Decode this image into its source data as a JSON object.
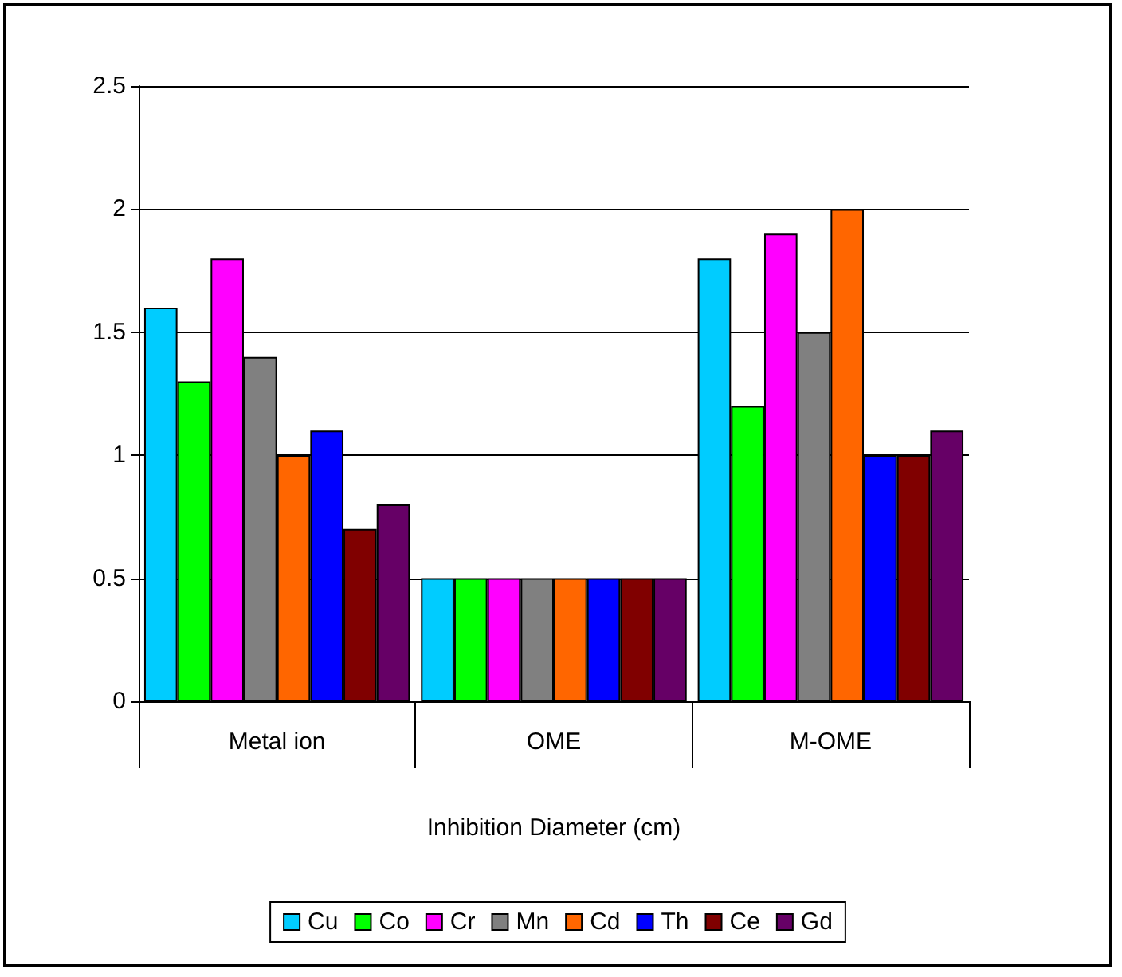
{
  "chart_data": {
    "type": "bar",
    "xlabel": "Inhibition Diameter (cm)",
    "categories": [
      "Metal ion",
      "OME",
      "M-OME"
    ],
    "series": [
      {
        "name": "Cu",
        "color": "#00ccff",
        "values": [
          1.6,
          0.5,
          1.8
        ]
      },
      {
        "name": "Co",
        "color": "#00ff00",
        "values": [
          1.3,
          0.5,
          1.2
        ]
      },
      {
        "name": "Cr",
        "color": "#ff00ff",
        "values": [
          1.8,
          0.5,
          1.9
        ]
      },
      {
        "name": "Mn",
        "color": "#808080",
        "values": [
          1.4,
          0.5,
          1.5
        ]
      },
      {
        "name": "Cd",
        "color": "#ff6600",
        "values": [
          1.0,
          0.5,
          2.0
        ]
      },
      {
        "name": "Th",
        "color": "#0000ff",
        "values": [
          1.1,
          0.5,
          1.0
        ]
      },
      {
        "name": "Ce",
        "color": "#800000",
        "values": [
          0.7,
          0.5,
          1.0
        ]
      },
      {
        "name": "Gd",
        "color": "#660066",
        "values": [
          0.8,
          0.5,
          1.1
        ]
      }
    ],
    "ylim": [
      0,
      2.5
    ],
    "yticks": [
      0,
      0.5,
      1,
      1.5,
      2,
      2.5
    ],
    "grid": "y",
    "legend": "bottom"
  }
}
